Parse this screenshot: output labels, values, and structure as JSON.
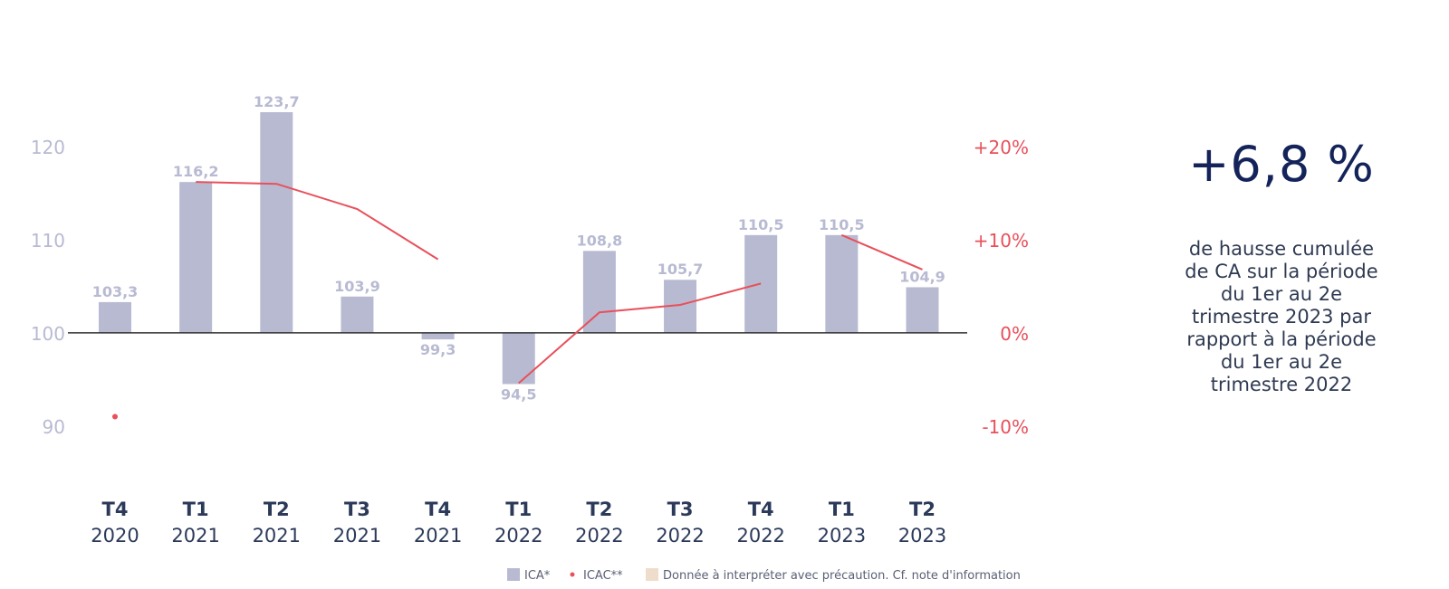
{
  "chart_data": {
    "type": "bar",
    "categories": [
      {
        "quarter": "T4",
        "year": "2020"
      },
      {
        "quarter": "T1",
        "year": "2021"
      },
      {
        "quarter": "T2",
        "year": "2021"
      },
      {
        "quarter": "T3",
        "year": "2021"
      },
      {
        "quarter": "T4",
        "year": "2021"
      },
      {
        "quarter": "T1",
        "year": "2022"
      },
      {
        "quarter": "T2",
        "year": "2022"
      },
      {
        "quarter": "T3",
        "year": "2022"
      },
      {
        "quarter": "T4",
        "year": "2022"
      },
      {
        "quarter": "T1",
        "year": "2023"
      },
      {
        "quarter": "T2",
        "year": "2023"
      }
    ],
    "series": [
      {
        "name": "ICA*",
        "type": "bar",
        "axis": "left",
        "values": [
          103.3,
          116.2,
          123.7,
          103.9,
          99.3,
          94.5,
          108.8,
          105.7,
          110.5,
          110.5,
          104.9
        ],
        "labels": [
          "103,3",
          "116,2",
          "123,7",
          "103,9",
          "99,3",
          "94,5",
          "108,8",
          "105,7",
          "110,5",
          "110,5",
          "104,9"
        ],
        "color": "#b8bad2",
        "label_color": "#b8bad2"
      },
      {
        "name": "ICAC**",
        "type": "line",
        "axis": "right",
        "unit": "%",
        "values": [
          -9,
          16.2,
          16.0,
          13.3,
          7.9,
          -5.4,
          2.2,
          3.0,
          5.3,
          10.5,
          6.8
        ],
        "segments": [
          [
            0,
            0
          ],
          [
            1,
            4
          ],
          [
            5,
            8
          ],
          [
            9,
            10
          ]
        ],
        "color": "#e8505b"
      }
    ],
    "left_axis": {
      "ylim": [
        86,
        127
      ],
      "ticks": [
        90,
        100,
        110,
        120
      ],
      "tick_labels": [
        "90",
        "100",
        "110",
        "120"
      ],
      "color": "#b8bad2",
      "baseline": 100
    },
    "right_axis": {
      "ylim": [
        -14,
        27
      ],
      "ticks": [
        -10,
        0,
        10,
        20
      ],
      "tick_labels": [
        "-10%",
        "0%",
        "+10%",
        "+20%"
      ],
      "color": "#e8505b"
    },
    "legend": {
      "position": "bottom",
      "items": [
        {
          "label": "ICA*",
          "marker": "square",
          "color": "#b8bad2"
        },
        {
          "label": "ICAC**",
          "marker": "dot",
          "color": "#e8505b"
        },
        {
          "label": "Donnée à interpréter avec précaution. Cf. note d'information",
          "marker": "square",
          "color": "#efdccb"
        }
      ]
    },
    "grid": false,
    "baseline_color": "#333333",
    "category_color": "#2c3a5a"
  },
  "kpi": {
    "value": "+6,8 %",
    "description": "de hausse cumulée de CA sur la période du 1er au 2e trimestre 2023 par rapport à la période du 1er au 2e trimestre 2022"
  }
}
